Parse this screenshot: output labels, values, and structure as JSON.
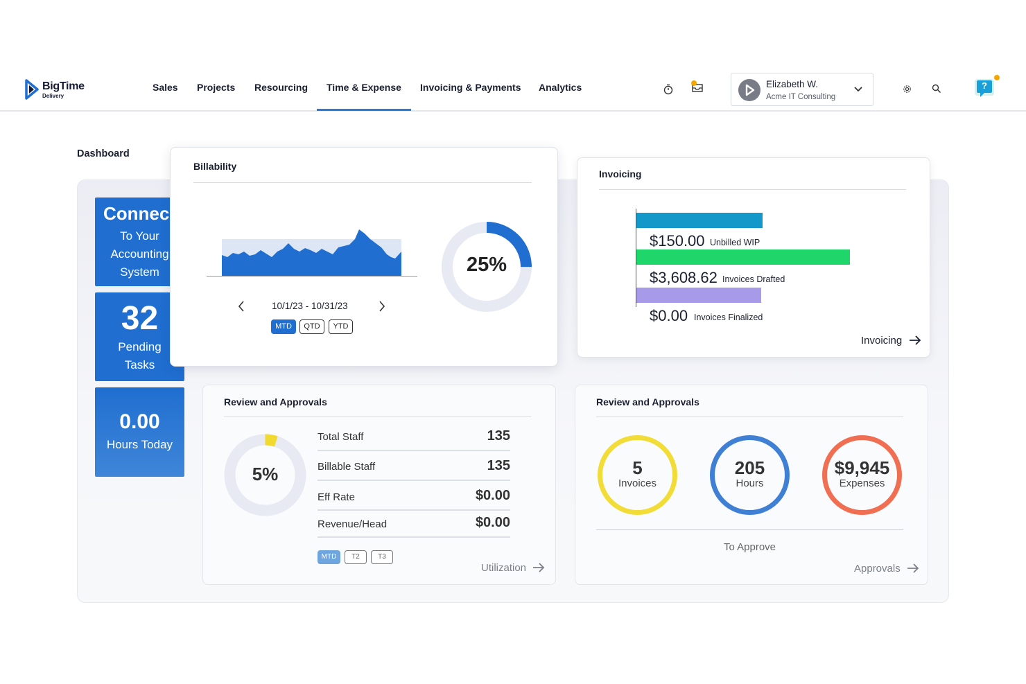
{
  "app": {
    "logo_name": "BigTime",
    "logo_sub": "Delivery",
    "brand_color": "#1f6ed0"
  },
  "nav": {
    "items": [
      {
        "label": "Sales"
      },
      {
        "label": "Projects"
      },
      {
        "label": "Resourcing"
      },
      {
        "label": "Time & Expense",
        "active": true
      },
      {
        "label": "Invoicing & Payments"
      },
      {
        "label": "Analytics"
      }
    ]
  },
  "toolbar": {
    "icons": [
      "timer-icon",
      "inbox-icon",
      "settings-icon",
      "search-icon",
      "help-icon"
    ],
    "help_label": "?",
    "notification_color": "#f5a600"
  },
  "user": {
    "name": "Elizabeth W.",
    "company": "Acme IT Consulting"
  },
  "page": {
    "title": "Dashboard"
  },
  "tiles": {
    "connect": {
      "headline": "Connec",
      "line1": "To Your",
      "line2": "Accounting",
      "line3": "System"
    },
    "pending": {
      "value": "32",
      "line1": "Pending",
      "line2": "Tasks"
    },
    "hours": {
      "value": "0.00",
      "label": "Hours Today"
    }
  },
  "billability": {
    "title": "Billability",
    "date_range": "10/1/23 - 10/31/23",
    "percent": 25,
    "percent_label": "25%",
    "periods": [
      "MTD",
      "QTD",
      "YTD"
    ],
    "active_period": "MTD"
  },
  "invoicing": {
    "title": "Invoicing",
    "bars": [
      {
        "amount": "$150.00",
        "label": "Unbilled WIP",
        "value": 150.0,
        "color": "#1398c9"
      },
      {
        "amount": "$3,608.62",
        "label": "Invoices Drafted",
        "value": 3608.62,
        "color": "#1fd66a"
      },
      {
        "amount": "$0.00",
        "label": "Invoices Finalized",
        "value": 0.0,
        "color": "#a79ae8"
      }
    ],
    "link_label": "Invoicing"
  },
  "utilization": {
    "title": "Review and Approvals",
    "percent": 5,
    "percent_label": "5%",
    "stats": [
      {
        "label": "Total Staff",
        "value": "135"
      },
      {
        "label": "Billable Staff",
        "value": "135"
      },
      {
        "label": "Eff Rate",
        "value": "$0.00"
      },
      {
        "label": "Revenue/Head",
        "value": "$0.00"
      }
    ],
    "periods": [
      "MTD",
      "T2",
      "T3"
    ],
    "active_period": "MTD",
    "link_label": "Utilization"
  },
  "approvals": {
    "title": "Review and Approvals",
    "rings": [
      {
        "value": "5",
        "label": "Invoices",
        "color": "#f2dc38"
      },
      {
        "value": "205",
        "label": "Hours",
        "color": "#3f80d4"
      },
      {
        "value": "$9,945",
        "label": "Expenses",
        "color": "#f06e52"
      }
    ],
    "caption": "To Approve",
    "link_label": "Approvals"
  }
}
